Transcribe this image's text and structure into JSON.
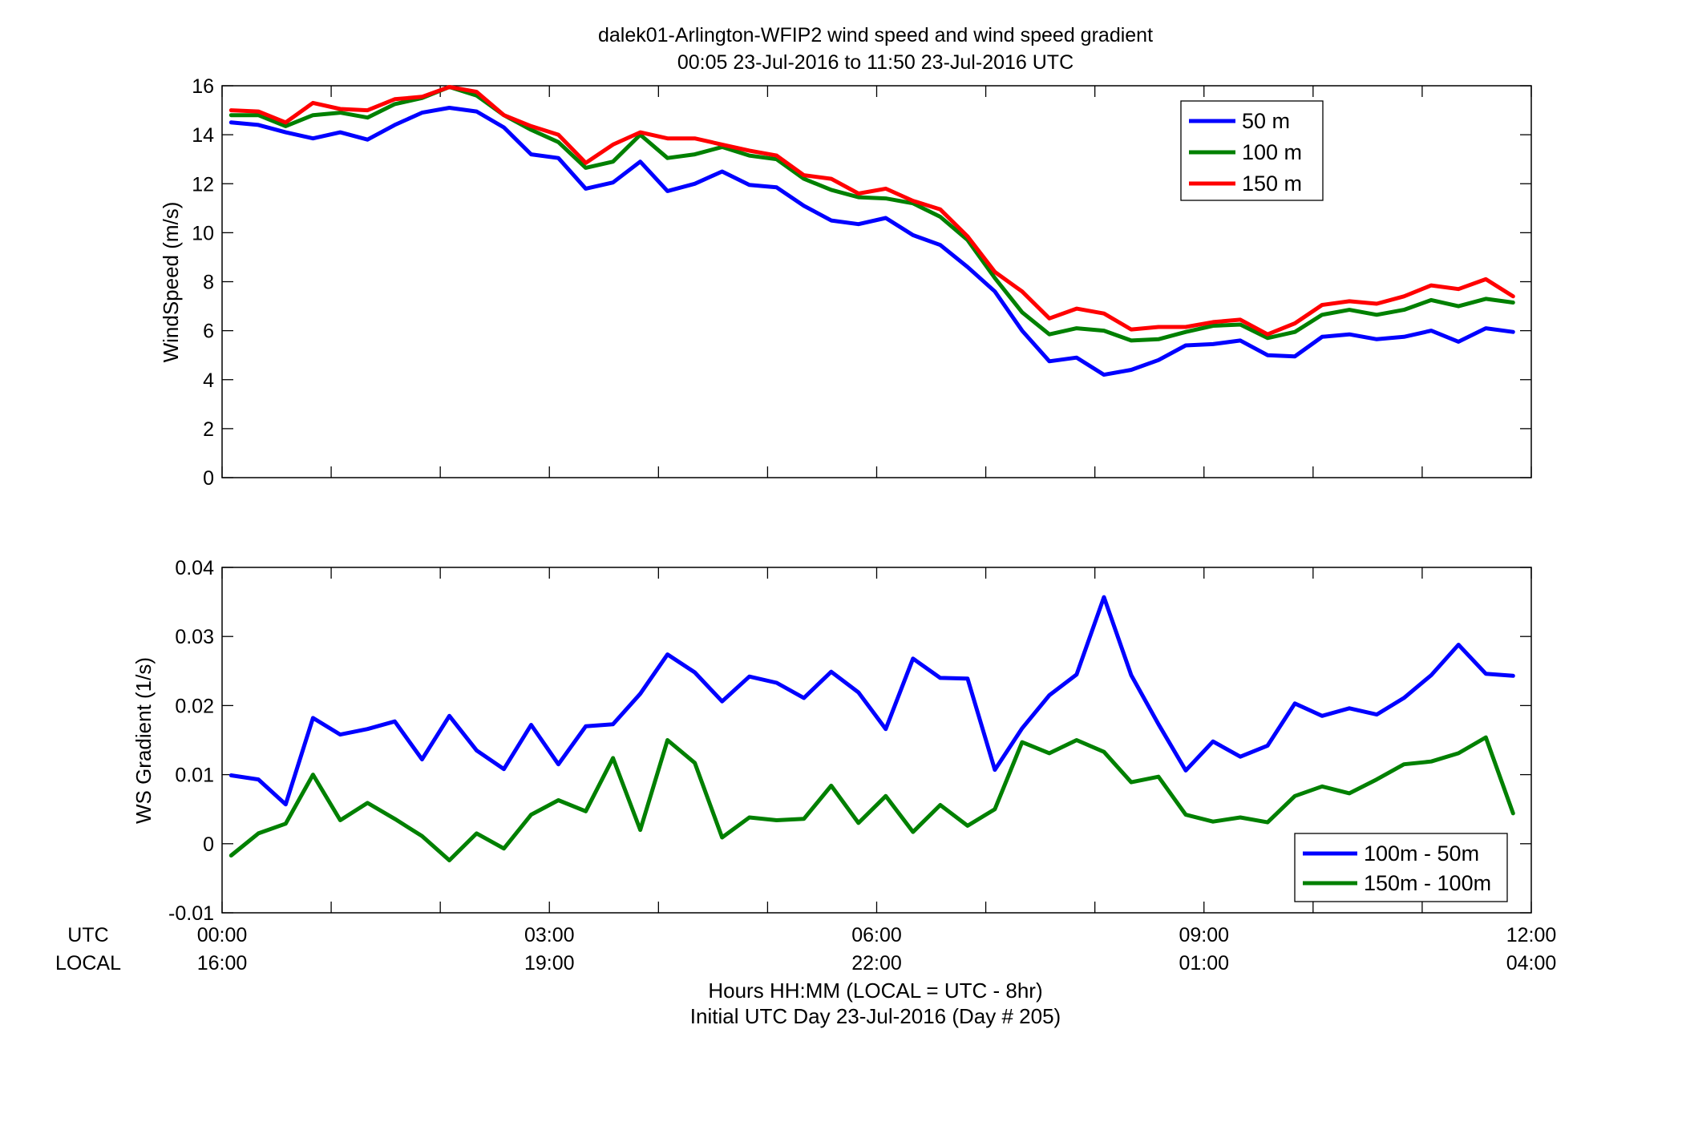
{
  "figure": {
    "title_line1": "dalek01-Arlington-WFIP2  wind speed and wind speed gradient",
    "title_line2": "00:05 23-Jul-2016 to 11:50 23-Jul-2016  UTC",
    "utc_row_label": "UTC",
    "local_row_label": "LOCAL",
    "xlabel_line1": "Hours HH:MM  (LOCAL = UTC - 8hr)",
    "xlabel_line2": "Initial UTC Day 23-Jul-2016 (Day # 205)"
  },
  "x_ticks": [
    {
      "hours": 0,
      "utc": "00:00",
      "local": "16:00"
    },
    {
      "hours": 3,
      "utc": "03:00",
      "local": "19:00"
    },
    {
      "hours": 6,
      "utc": "06:00",
      "local": "22:00"
    },
    {
      "hours": 9,
      "utc": "09:00",
      "local": "01:00"
    },
    {
      "hours": 12,
      "utc": "12:00",
      "local": "04:00"
    }
  ],
  "chart_data": [
    {
      "type": "line",
      "title": "",
      "xlabel": "",
      "ylabel": "WindSpeed (m/s)",
      "xlim": [
        0,
        12
      ],
      "ylim": [
        0,
        16
      ],
      "yticks": [
        0,
        2,
        4,
        6,
        8,
        10,
        12,
        14,
        16
      ],
      "grid": false,
      "legend_position": "top-right",
      "x": [
        0.083,
        0.333,
        0.583,
        0.833,
        1.083,
        1.333,
        1.583,
        1.833,
        2.083,
        2.333,
        2.583,
        2.833,
        3.083,
        3.333,
        3.583,
        3.833,
        4.083,
        4.333,
        4.583,
        4.833,
        5.083,
        5.333,
        5.583,
        5.833,
        6.083,
        6.333,
        6.583,
        6.833,
        7.083,
        7.333,
        7.583,
        7.833,
        8.083,
        8.333,
        8.583,
        8.833,
        9.083,
        9.333,
        9.583,
        9.833,
        10.083,
        10.333,
        10.583,
        10.833,
        11.083,
        11.333,
        11.583,
        11.833
      ],
      "series": [
        {
          "name": "50 m",
          "color": "#0000ff",
          "values": [
            14.5,
            14.4,
            14.1,
            13.85,
            14.1,
            13.8,
            14.4,
            14.9,
            15.1,
            14.95,
            14.3,
            13.2,
            13.05,
            11.8,
            12.05,
            12.9,
            11.7,
            12.0,
            12.5,
            11.95,
            11.85,
            11.1,
            10.5,
            10.35,
            10.6,
            9.9,
            9.5,
            8.6,
            7.6,
            6.0,
            4.75,
            4.9,
            4.2,
            4.4,
            4.8,
            5.4,
            5.45,
            5.6,
            5.0,
            4.95,
            5.75,
            5.85,
            5.65,
            5.75,
            6.0,
            5.55,
            6.1,
            5.95
          ]
        },
        {
          "name": "100 m",
          "color": "#008000",
          "values": [
            14.8,
            14.8,
            14.35,
            14.8,
            14.9,
            14.7,
            15.25,
            15.5,
            15.95,
            15.6,
            14.8,
            14.2,
            13.7,
            12.65,
            12.9,
            14.0,
            13.05,
            13.2,
            13.5,
            13.15,
            13.0,
            12.2,
            11.75,
            11.45,
            11.4,
            11.2,
            10.65,
            9.7,
            8.15,
            6.75,
            5.85,
            6.1,
            6.0,
            5.6,
            5.65,
            5.95,
            6.2,
            6.25,
            5.7,
            5.95,
            6.65,
            6.85,
            6.65,
            6.85,
            7.25,
            7.0,
            7.3,
            7.15
          ]
        },
        {
          "name": "150 m",
          "color": "#ff0000",
          "values": [
            15.0,
            14.95,
            14.5,
            15.3,
            15.05,
            15.0,
            15.45,
            15.55,
            15.95,
            15.75,
            14.8,
            14.35,
            14.0,
            12.85,
            13.6,
            14.1,
            13.85,
            13.85,
            13.6,
            13.35,
            13.15,
            12.35,
            12.2,
            11.6,
            11.8,
            11.3,
            10.95,
            9.85,
            8.4,
            7.6,
            6.5,
            6.9,
            6.7,
            6.05,
            6.15,
            6.15,
            6.35,
            6.45,
            5.85,
            6.3,
            7.05,
            7.2,
            7.1,
            7.4,
            7.85,
            7.7,
            8.1,
            7.4
          ]
        }
      ]
    },
    {
      "type": "line",
      "title": "",
      "xlabel": "",
      "ylabel": "WS Gradient (1/s)",
      "xlim": [
        0,
        12
      ],
      "ylim": [
        -0.01,
        0.04
      ],
      "yticks": [
        -0.01,
        0,
        0.01,
        0.02,
        0.03,
        0.04
      ],
      "ytick_labels": [
        "-0.01",
        "0",
        "0.01",
        "0.02",
        "0.03",
        "0.04"
      ],
      "grid": false,
      "legend_position": "bottom-right",
      "x": [
        0.083,
        0.333,
        0.583,
        0.833,
        1.083,
        1.333,
        1.583,
        1.833,
        2.083,
        2.333,
        2.583,
        2.833,
        3.083,
        3.333,
        3.583,
        3.833,
        4.083,
        4.333,
        4.583,
        4.833,
        5.083,
        5.333,
        5.583,
        5.833,
        6.083,
        6.333,
        6.583,
        6.833,
        7.083,
        7.333,
        7.583,
        7.833,
        8.083,
        8.333,
        8.583,
        8.833,
        9.083,
        9.333,
        9.583,
        9.833,
        10.083,
        10.333,
        10.583,
        10.833,
        11.083,
        11.333,
        11.583,
        11.833
      ],
      "series": [
        {
          "name": "100m - 50m",
          "color": "#0000ff",
          "values": [
            0.0099,
            0.0093,
            0.0057,
            0.0182,
            0.0158,
            0.0166,
            0.0177,
            0.0122,
            0.0185,
            0.0135,
            0.0108,
            0.0172,
            0.0115,
            0.017,
            0.0173,
            0.0217,
            0.0274,
            0.0248,
            0.0206,
            0.0242,
            0.0233,
            0.0211,
            0.0249,
            0.0219,
            0.0166,
            0.0268,
            0.024,
            0.0239,
            0.0107,
            0.0167,
            0.0215,
            0.0245,
            0.0357,
            0.0244,
            0.0173,
            0.0106,
            0.0148,
            0.0126,
            0.0142,
            0.0203,
            0.0185,
            0.0196,
            0.0187,
            0.0211,
            0.0244,
            0.0288,
            0.0246,
            0.0243
          ]
        },
        {
          "name": "150m - 100m",
          "color": "#008000",
          "values": [
            -0.0017,
            0.0015,
            0.0029,
            0.01,
            0.0034,
            0.0059,
            0.0036,
            0.0011,
            -0.0024,
            0.0015,
            -0.0007,
            0.0042,
            0.0063,
            0.0047,
            0.0124,
            0.002,
            0.015,
            0.0117,
            0.0009,
            0.0038,
            0.0034,
            0.0036,
            0.0084,
            0.003,
            0.0069,
            0.0017,
            0.0056,
            0.0026,
            0.005,
            0.0147,
            0.0131,
            0.015,
            0.0133,
            0.0089,
            0.0097,
            0.0042,
            0.0032,
            0.0038,
            0.0031,
            0.0069,
            0.0083,
            0.0073,
            0.0093,
            0.0115,
            0.0119,
            0.0131,
            0.0154,
            0.0044
          ]
        }
      ]
    }
  ]
}
